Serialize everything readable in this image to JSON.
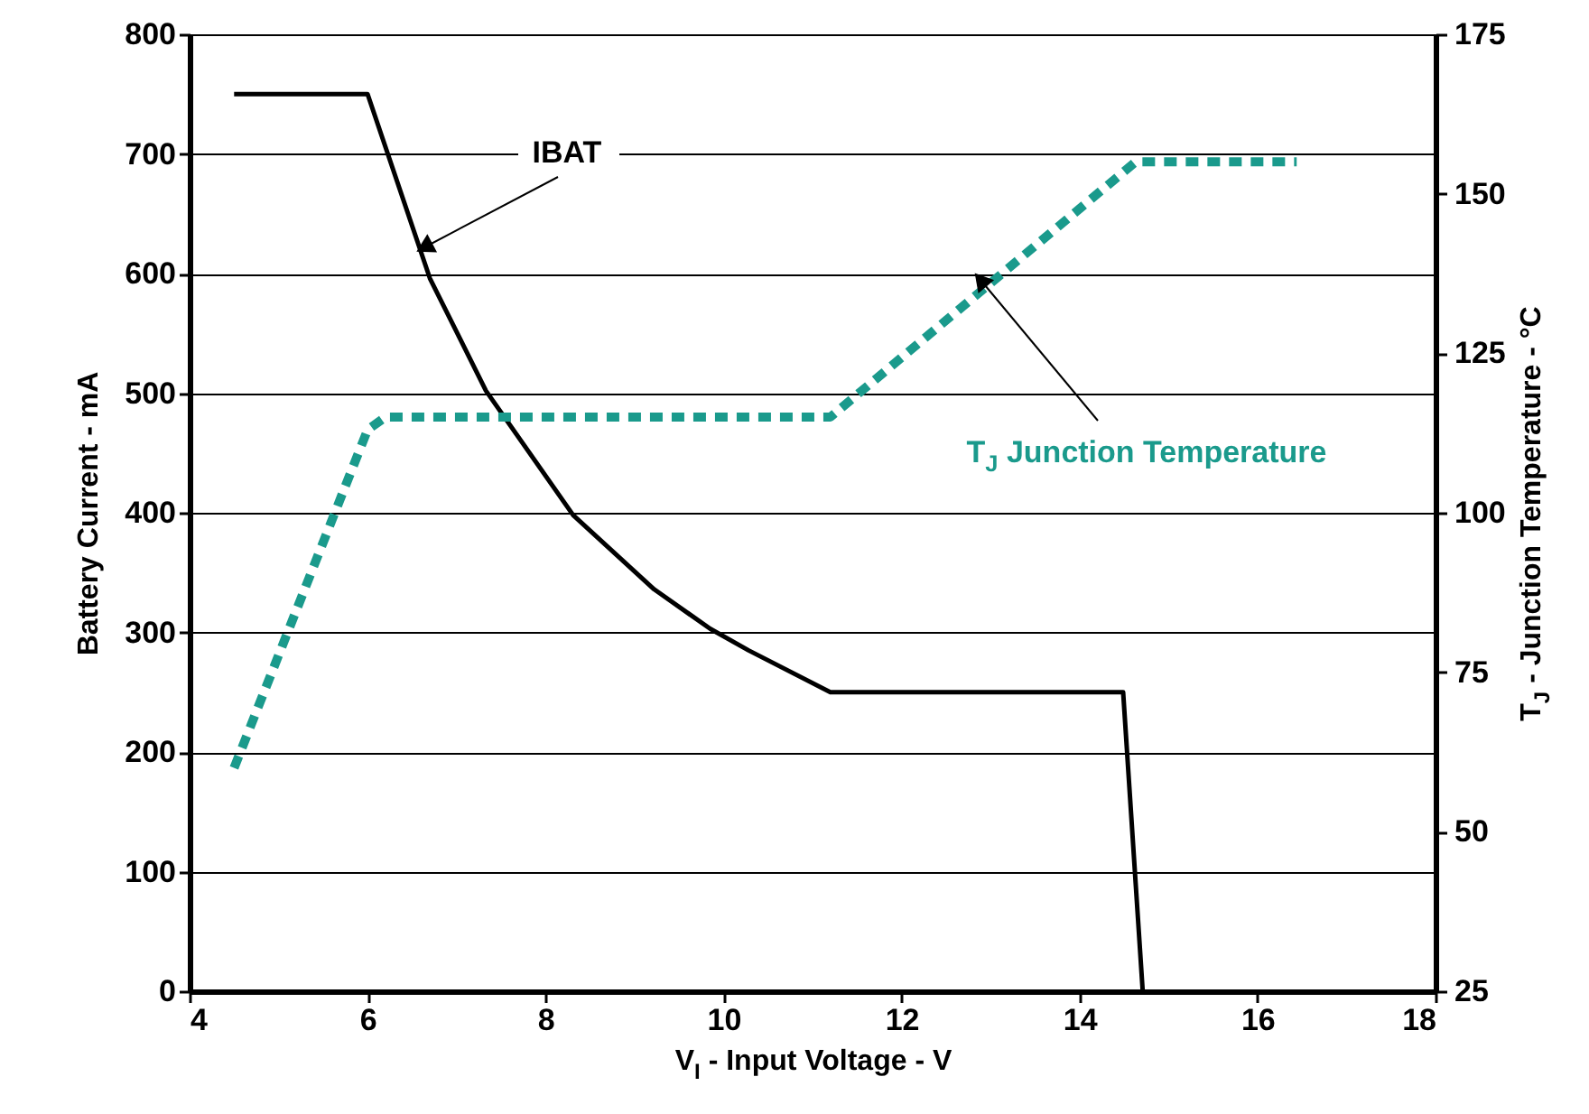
{
  "chart_data": {
    "type": "line",
    "xlabel": "V$_{I}$ - Input Voltage - V",
    "ylabel": "Battery Current - mA",
    "y2label": "T$_{J}$ - Junction Temperature - °C",
    "xlim": [
      4,
      18
    ],
    "xticks": [
      4,
      6,
      8,
      10,
      12,
      14,
      16,
      18
    ],
    "ylim": [
      0,
      800
    ],
    "yticks": [
      0,
      100,
      200,
      300,
      400,
      500,
      600,
      700,
      800
    ],
    "y2lim": [
      25,
      175
    ],
    "y2ticks": [
      25,
      50,
      75,
      100,
      125,
      150,
      175
    ],
    "grid": "y",
    "series": [
      {
        "name": "IBAT",
        "color": "#000000",
        "line_style": "solid",
        "x": [
          4.5,
          6,
          6.7,
          7.33,
          8.31,
          9.22,
          9.85,
          10.28,
          11.2,
          14.49,
          14.71
        ],
        "values": [
          750,
          750,
          596,
          502,
          398,
          336,
          303,
          285,
          250,
          250,
          0
        ]
      },
      {
        "name": "T$_{J}$ Junction Temperature",
        "color": "#1a9a8c",
        "line_style": "dashed",
        "axis": "y2",
        "x": [
          4.5,
          6,
          6.2,
          11.2,
          14.63,
          16.44
        ],
        "values": [
          60,
          113,
          115,
          115,
          155,
          155
        ]
      }
    ]
  }
}
